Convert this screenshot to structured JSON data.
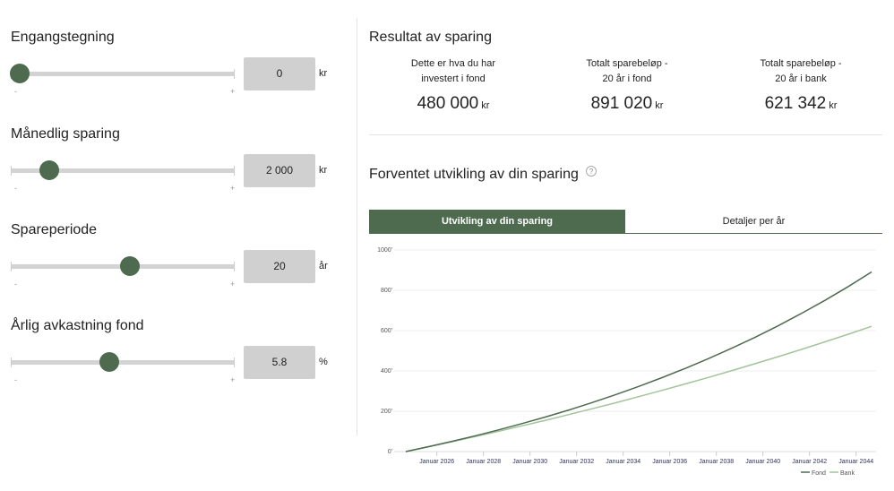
{
  "fields": [
    {
      "label": "Engangstegning",
      "value": "0",
      "unit": "kr",
      "slider_fraction": 0.0,
      "min_label": "-",
      "max_label": "+"
    },
    {
      "label": "Månedlig sparing",
      "value": "2 000",
      "unit": "kr",
      "slider_fraction": 0.13,
      "min_label": "-",
      "max_label": "+"
    },
    {
      "label": "Spareperiode",
      "value": "20",
      "unit": "år",
      "slider_fraction": 0.49,
      "min_label": "-",
      "max_label": "+"
    },
    {
      "label": "Årlig avkastning fond",
      "value": "5.8",
      "unit": "%",
      "slider_fraction": 0.4,
      "min_label": "-",
      "max_label": "+"
    }
  ],
  "result": {
    "title": "Resultat av sparing",
    "columns": [
      {
        "label1": "Dette er hva du har",
        "label2": "investert i fond",
        "value": "480 000",
        "unit": "kr"
      },
      {
        "label1": "Totalt sparebeløp -",
        "label2": "20 år i fond",
        "value": "891 020",
        "unit": "kr"
      },
      {
        "label1": "Totalt sparebeløp -",
        "label2": "20 år i bank",
        "value": "621 342",
        "unit": "kr"
      }
    ]
  },
  "development": {
    "title": "Forventet utvikling av din sparing",
    "help_icon": "question-circle-icon"
  },
  "tabs": [
    {
      "label": "Utvikling av din sparing",
      "active": true
    },
    {
      "label": "Detaljer per år",
      "active": false
    }
  ],
  "colors": {
    "accent": "#4e6b50",
    "fond": "#4e6b50",
    "bank": "#a3c49b"
  },
  "chart_data": {
    "type": "line",
    "ylim": [
      0,
      1000000
    ],
    "y_ticks": [
      "0'",
      "200'",
      "400'",
      "600'",
      "800'",
      "1000'"
    ],
    "y_tick_values": [
      0,
      200000,
      400000,
      600000,
      800000,
      1000000
    ],
    "x_ticks": [
      "Januar 2026",
      "Januar 2028",
      "Januar 2030",
      "Januar 2032",
      "Januar 2034",
      "Januar 2036",
      "Januar 2038",
      "Januar 2040",
      "Januar 2042",
      "Januar 2044"
    ],
    "x_tick_dates": [
      "2026-01",
      "2028-01",
      "2030-01",
      "2032-01",
      "2034-01",
      "2036-01",
      "2038-01",
      "2040-01",
      "2042-01",
      "2044-01"
    ],
    "x": [
      "2024-09",
      "2025-09",
      "2026-09",
      "2027-09",
      "2028-09",
      "2029-09",
      "2030-09",
      "2031-09",
      "2032-09",
      "2033-09",
      "2034-09",
      "2035-09",
      "2036-09",
      "2037-09",
      "2038-09",
      "2039-09",
      "2040-09",
      "2041-09",
      "2042-09",
      "2043-09",
      "2044-09"
    ],
    "grid": true,
    "legend": "bottom-right",
    "series": [
      {
        "name": "Fond",
        "values": [
          0,
          24700,
          50900,
          78600,
          108000,
          139000,
          171700,
          206400,
          243200,
          282000,
          323100,
          366600,
          412600,
          461300,
          512800,
          567300,
          624900,
          686000,
          750400,
          818700,
          891020
        ]
      },
      {
        "name": "Bank",
        "values": [
          0,
          24300,
          49200,
          74800,
          100900,
          127800,
          155300,
          183500,
          212400,
          242000,
          272400,
          303500,
          335400,
          368100,
          401600,
          436000,
          471200,
          507200,
          544300,
          582200,
          621342
        ]
      }
    ]
  }
}
